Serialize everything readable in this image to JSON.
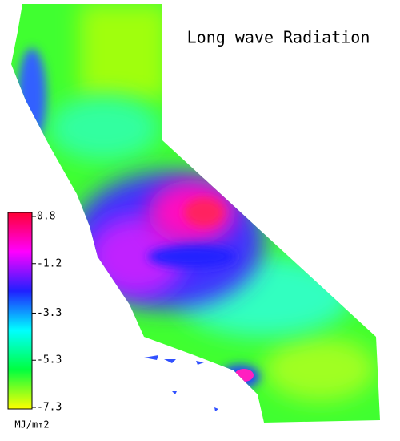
{
  "title": "Long wave Radiation",
  "colorbar": {
    "lim": [
      -7.3,
      0.8
    ],
    "ticks": [
      0.8,
      -1.2,
      -3.3,
      -5.3,
      -7.3
    ],
    "colors": [
      "#ff0033",
      "#ff00ff",
      "#2020ff",
      "#00ffff",
      "#00ff40",
      "#ffff00"
    ],
    "unit_label": "MJ/m↑2"
  }
}
